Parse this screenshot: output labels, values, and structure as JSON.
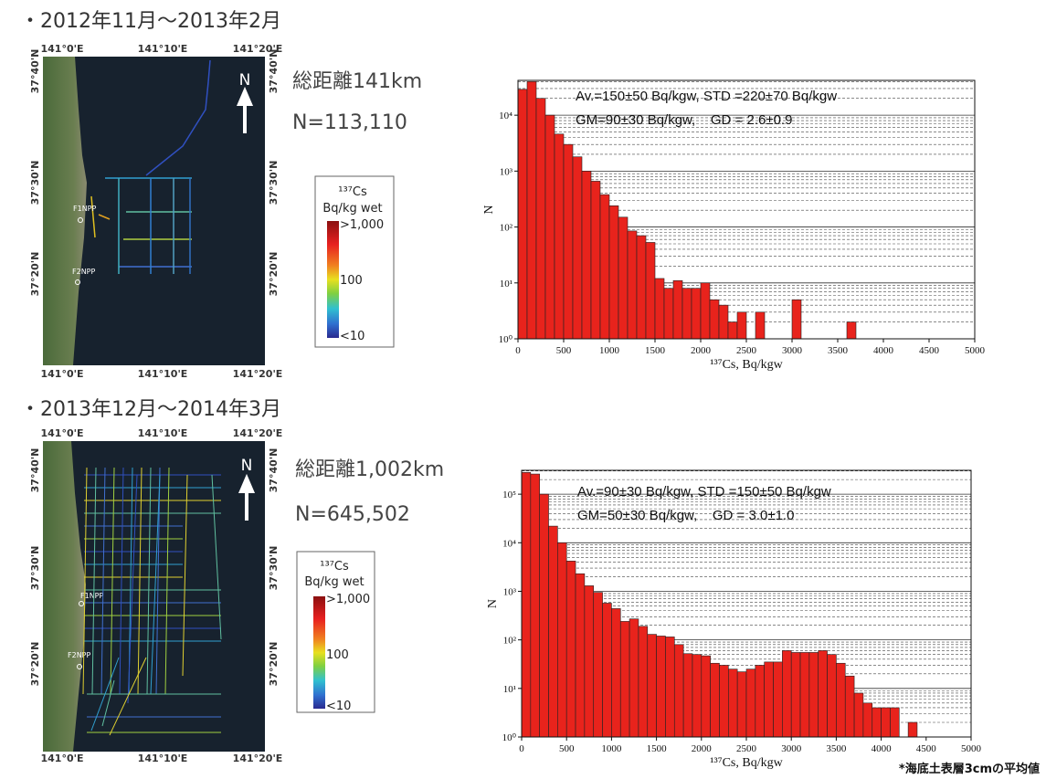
{
  "sections": [
    {
      "heading": "・2012年11月～2013年2月",
      "distance": "総距離141km",
      "count": "N=113,110",
      "map": {
        "top_labels": [
          "141°0'E",
          "141°10'E",
          "141°20'E"
        ],
        "bottom_labels": [
          "141°0'E",
          "141°10'E",
          "141°20'E"
        ],
        "left_labels": [
          "37°40'N",
          "37°30'N",
          "37°20'N"
        ],
        "right_labels": [
          "37°40'N",
          "37°30'N",
          "37°20'N"
        ],
        "plants": [
          "F1NPP",
          "F2NPP"
        ],
        "north": "N"
      },
      "legend": {
        "title": "¹³⁷Cs",
        "unit": "Bq/kg wet",
        "labels": [
          ">1,000",
          "100",
          "<10"
        ]
      }
    },
    {
      "heading": "・2013年12月～2014年3月",
      "distance": "総距離1,002km",
      "count": "N=645,502",
      "map": {
        "top_labels": [
          "141°0'E",
          "141°10'E",
          "141°20'E"
        ],
        "bottom_labels": [
          "141°0'E",
          "141°10'E",
          "141°20'E"
        ],
        "left_labels": [
          "37°40'N",
          "37°30'N",
          "37°20'N"
        ],
        "right_labels": [
          "37°40'N",
          "37°30'N",
          "37°20'N"
        ],
        "plants": [
          "F1NPP",
          "F2NPP"
        ],
        "north": "N"
      },
      "legend": {
        "title": "¹³⁷Cs",
        "unit": "Bq/kg wet",
        "labels": [
          ">1,000",
          "100",
          "<10"
        ]
      }
    }
  ],
  "chart_data": [
    {
      "type": "histogram",
      "color": "#e8231c",
      "log_y": true,
      "grid": true,
      "bins": [
        0,
        100,
        200,
        300,
        400,
        500,
        600,
        700,
        800,
        900,
        1000,
        1100,
        1200,
        1300,
        1400,
        1500,
        1600,
        1700,
        1800,
        1900,
        2000,
        2100,
        2200,
        2300,
        2400,
        2500,
        2600,
        2700,
        2800,
        2900,
        3000,
        3100,
        3200,
        3300,
        3400,
        3500,
        3600,
        3700
      ],
      "values": [
        29000,
        40000,
        20000,
        10000,
        4600,
        3000,
        1800,
        1000,
        660,
        380,
        240,
        150,
        85,
        70,
        53,
        12,
        8,
        11,
        8,
        8,
        10,
        5,
        4,
        2,
        3,
        0,
        3,
        0,
        0,
        0,
        5,
        0,
        0,
        0,
        0,
        0,
        2
      ],
      "xlim": [
        0,
        5000
      ],
      "xticks": [
        0,
        500,
        1000,
        1500,
        2000,
        2500,
        3000,
        3500,
        4000,
        4500,
        5000
      ],
      "ylim": [
        1,
        42000
      ],
      "yticks": [
        {
          "value": 1,
          "label": "10⁰"
        },
        {
          "value": 10,
          "label": "10¹"
        },
        {
          "value": 100,
          "label": "10²"
        },
        {
          "value": 1000,
          "label": "10³"
        },
        {
          "value": 10000,
          "label": "10⁴"
        }
      ],
      "xlabel": "¹³⁷Cs, Bq/kgw",
      "ylabel": "N",
      "annotations": [
        "Av.=150±50 Bq/kgw, STD =220±70 Bq/kgw",
        "GM=90±30 Bq/kgw,    GD = 2.6±0.9"
      ]
    },
    {
      "type": "histogram",
      "color": "#e8231c",
      "log_y": true,
      "grid": true,
      "bins": [
        0,
        100,
        200,
        300,
        400,
        500,
        600,
        700,
        800,
        900,
        1000,
        1100,
        1200,
        1300,
        1400,
        1500,
        1600,
        1700,
        1800,
        1900,
        2000,
        2100,
        2200,
        2300,
        2400,
        2500,
        2600,
        2700,
        2800,
        2900,
        3000,
        3100,
        3200,
        3300,
        3400,
        3500,
        3600,
        3700,
        3800,
        3900,
        4000,
        4100,
        4200,
        4300,
        4400
      ],
      "values": [
        280000,
        260000,
        100000,
        22000,
        10000,
        4200,
        2300,
        1300,
        950,
        570,
        440,
        240,
        270,
        190,
        130,
        120,
        115,
        80,
        52,
        50,
        47,
        33,
        30,
        25,
        22,
        25,
        30,
        35,
        35,
        60,
        55,
        55,
        55,
        60,
        50,
        33,
        18,
        8,
        5,
        4,
        4,
        4,
        0,
        2
      ],
      "xlim": [
        0,
        5000
      ],
      "xticks": [
        0,
        500,
        1000,
        1500,
        2000,
        2500,
        3000,
        3500,
        4000,
        4500,
        5000
      ],
      "ylim": [
        1,
        310000
      ],
      "yticks": [
        {
          "value": 1,
          "label": "10⁰"
        },
        {
          "value": 10,
          "label": "10¹"
        },
        {
          "value": 100,
          "label": "10²"
        },
        {
          "value": 1000,
          "label": "10³"
        },
        {
          "value": 10000,
          "label": "10⁴"
        },
        {
          "value": 100000,
          "label": "10⁵"
        }
      ],
      "xlabel": "¹³⁷Cs, Bq/kgw",
      "ylabel": "N",
      "annotations": [
        "Av.=90±30 Bq/kgw, STD =150±50 Bq/kgw",
        "GM=50±30 Bq/kgw,    GD = 3.0±1.0"
      ]
    }
  ],
  "footnote": "*海底土表層3cmの平均値"
}
